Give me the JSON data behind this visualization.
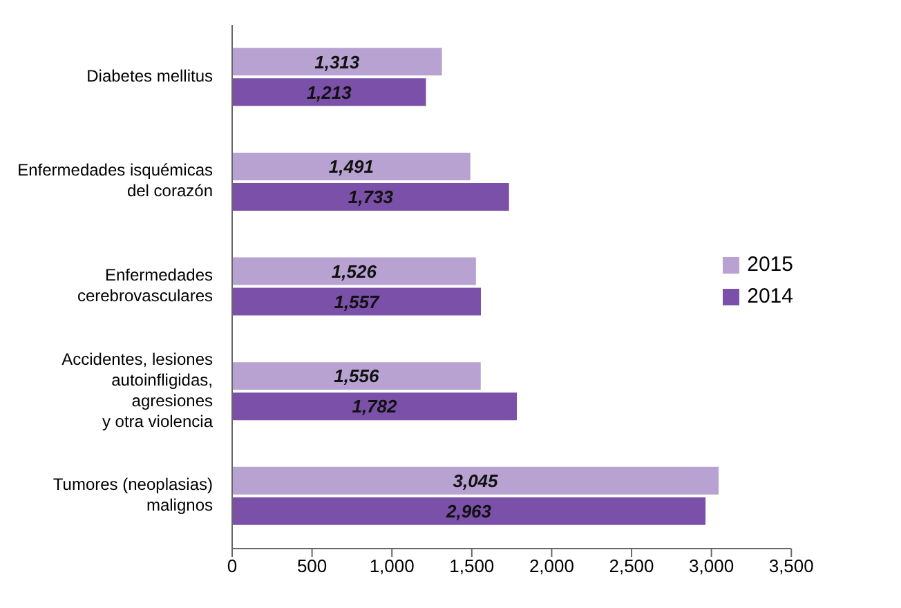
{
  "chart_data": {
    "type": "bar",
    "orientation": "horizontal",
    "categories": [
      "Diabetes mellitus",
      "Enfermedades isquémicas\ndel corazón",
      "Enfermedades\ncerebrovasculares",
      "Accidentes, lesiones\nautoinfligidas,\nagresiones\ny otra violencia",
      "Tumores (neoplasias)\nmalignos"
    ],
    "series": [
      {
        "name": "2015",
        "color": "#b7a2d2",
        "values": [
          1313,
          1491,
          1526,
          1556,
          3045
        ],
        "value_labels": [
          "1,313",
          "1,491",
          "1,526",
          "1,556",
          "3,045"
        ]
      },
      {
        "name": "2014",
        "color": "#7b50a9",
        "values": [
          1213,
          1733,
          1557,
          1782,
          2963
        ],
        "value_labels": [
          "1,213",
          "1,733",
          "1,557",
          "1,782",
          "2,963"
        ]
      }
    ],
    "xlim": [
      0,
      3500
    ],
    "xticks": [
      0,
      500,
      {
        "value": 1000,
        "label": "1,000"
      },
      {
        "value": 1500,
        "label": "1,500"
      },
      {
        "value": 2000,
        "label": "2,000"
      },
      {
        "value": 2500,
        "label": "2,500"
      },
      {
        "value": 3000,
        "label": "3,000"
      },
      {
        "value": 3500,
        "label": "3,500"
      }
    ],
    "grid": false,
    "legend": "right"
  }
}
